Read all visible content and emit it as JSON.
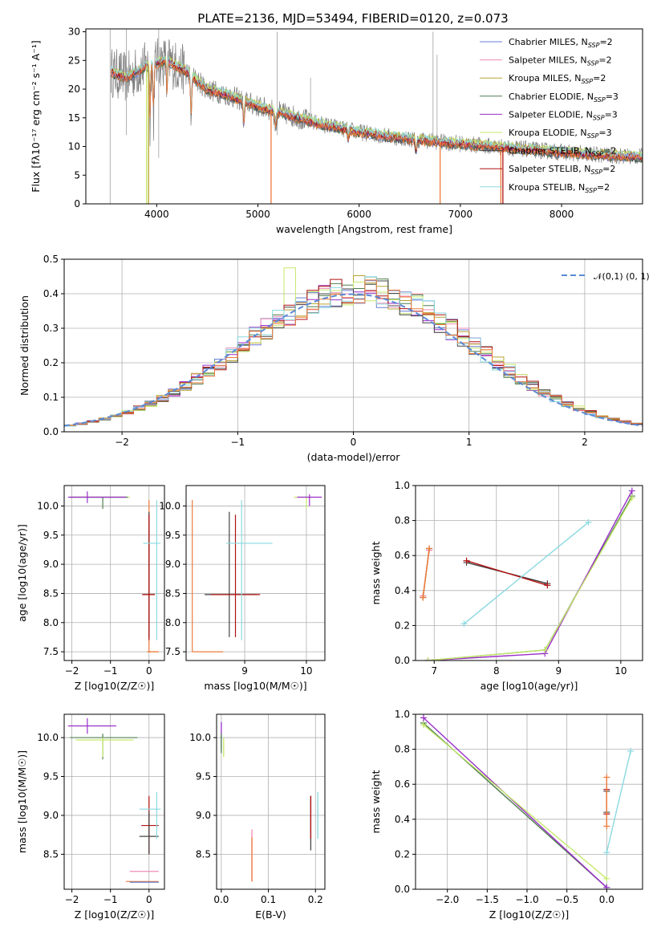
{
  "colors": {
    "gray": "#7f7f7f",
    "grid": "#b0b0b0",
    "chabrier_miles": "#6a7fd1",
    "salpeter_miles": "#f08cb5",
    "kroupa_miles": "#b8a430",
    "chabrier_elodie": "#4f7f4f",
    "salpeter_elodie": "#9a2fc9",
    "kroupa_elodie": "#c5e86a",
    "chabrier_stelib": "#444444",
    "salpeter_stelib": "#b01212",
    "kroupa_stelib": "#8ad9e0",
    "orange": "#ee7b3a",
    "normal": "#5b8ad6"
  },
  "series_keys": [
    "chabrier_miles",
    "salpeter_miles",
    "kroupa_miles",
    "chabrier_elodie",
    "salpeter_elodie",
    "kroupa_elodie",
    "chabrier_stelib",
    "salpeter_stelib",
    "kroupa_stelib"
  ],
  "chart_data": [
    {
      "type": "line",
      "title": "PLATE=2136, MJD=53494, FIBERID=0120, z=0.073",
      "xlabel": "wavelength [Angstrom, rest frame]",
      "ylabel": "Flux [fλ10⁻¹⁷ erg cm⁻² s⁻¹ A⁻¹]",
      "xlim": [
        3300,
        8800
      ],
      "ylim": [
        0,
        30.5
      ],
      "xticks": [
        4000,
        5000,
        6000,
        7000,
        8000
      ],
      "yticks": [
        0,
        5,
        10,
        15,
        20,
        25,
        30
      ],
      "legend_position": "upper-right",
      "legend": [
        "Chabrier MILES, N_SSP=2",
        "Salpeter MILES, N_SSP=2",
        "Kroupa MILES, N_SSP=2",
        "Chabrier ELODIE, N_SSP=3",
        "Salpeter ELODIE, N_SSP=3",
        "Kroupa ELODIE, N_SSP=3",
        "Chabrier STELIB, N_SSP=2",
        "Salpeter STELIB, N_SSP=2",
        "Kroupa STELIB, N_SSP=2"
      ],
      "model_continuum": {
        "x": [
          3550,
          3700,
          3900,
          4100,
          4300,
          4500,
          4700,
          5000,
          5300,
          5600,
          6000,
          6400,
          6800,
          7200,
          7600,
          8000,
          8400,
          8800
        ],
        "y": [
          23,
          22,
          24,
          25,
          23,
          20,
          19,
          17,
          15.5,
          14,
          12.5,
          11.5,
          10.8,
          10.2,
          9.6,
          9.0,
          8.5,
          8.2
        ]
      }
    },
    {
      "type": "bar",
      "xlabel": "(data-model)/error",
      "ylabel": "Normed distribution",
      "xlim": [
        -2.5,
        2.5
      ],
      "ylim": [
        0,
        0.5
      ],
      "xticks": [
        -2,
        -1,
        0,
        1,
        2
      ],
      "yticks": [
        0.0,
        0.1,
        0.2,
        0.3,
        0.4,
        0.5
      ],
      "legend": [
        "𝒩(0,1)"
      ],
      "legend_position": "upper-right",
      "bin_width": 0.1
    },
    {
      "type": "scatter",
      "xlabel": "Z [log10(Z/Z☉)]",
      "ylabel": "age  [log10(age/yr)]",
      "xlim": [
        -2.2,
        0.4
      ],
      "ylim": [
        7.35,
        10.35
      ],
      "xticks": [
        -2,
        -1,
        0
      ],
      "yticks": [
        7.5,
        8.0,
        8.5,
        9.0,
        9.5,
        10.0
      ]
    },
    {
      "type": "scatter",
      "xlabel": "mass [log10(M/M☉)]",
      "ylabel": "",
      "xlim": [
        8.05,
        10.3
      ],
      "ylim": [
        7.35,
        10.35
      ],
      "xticks": [
        9,
        10
      ],
      "yticks": [
        7.5,
        8.0,
        8.5,
        9.0,
        9.5,
        10.0
      ]
    },
    {
      "type": "line",
      "xlabel": "age  [log10(age/yr)]",
      "ylabel": "mass weight",
      "xlim": [
        6.7,
        10.35
      ],
      "ylim": [
        0,
        1
      ],
      "xticks": [
        7,
        8,
        9,
        10
      ],
      "yticks": [
        0.0,
        0.2,
        0.4,
        0.6,
        0.8,
        1.0
      ],
      "series": [
        {
          "name": "Chabrier MILES",
          "key": "chabrier_miles",
          "x": [
            6.82,
            6.92
          ],
          "y": [
            0.36,
            0.64
          ]
        },
        {
          "name": "Salpeter MILES",
          "key": "salpeter_miles",
          "x": [
            6.82,
            6.92
          ],
          "y": [
            0.37,
            0.63
          ]
        },
        {
          "name": "Kroupa MILES",
          "key": "kroupa_miles",
          "x": [
            6.82,
            6.92
          ],
          "y": [
            0.36,
            0.64
          ]
        },
        {
          "name": "Chabrier ELODIE",
          "key": "chabrier_elodie",
          "x": [
            6.9,
            8.78,
            10.18
          ],
          "y": [
            0.0,
            0.06,
            0.94
          ]
        },
        {
          "name": "Salpeter ELODIE",
          "key": "salpeter_elodie",
          "x": [
            6.9,
            8.78,
            10.18
          ],
          "y": [
            0.0,
            0.04,
            0.97
          ]
        },
        {
          "name": "Kroupa ELODIE",
          "key": "kroupa_elodie",
          "x": [
            6.9,
            8.78,
            10.18
          ],
          "y": [
            0.0,
            0.06,
            0.93
          ]
        },
        {
          "name": "Chabrier STELIB",
          "key": "chabrier_stelib",
          "x": [
            7.52,
            8.82
          ],
          "y": [
            0.56,
            0.44
          ]
        },
        {
          "name": "Salpeter STELIB",
          "key": "salpeter_stelib",
          "x": [
            7.52,
            8.82
          ],
          "y": [
            0.57,
            0.43
          ]
        },
        {
          "name": "Kroupa STELIB",
          "key": "kroupa_stelib",
          "x": [
            7.48,
            9.48
          ],
          "y": [
            0.21,
            0.79
          ]
        },
        {
          "name": "orange",
          "key": "orange",
          "x": [
            6.82,
            6.92
          ],
          "y": [
            0.36,
            0.64
          ]
        }
      ]
    },
    {
      "type": "scatter",
      "xlabel": "Z [log10(Z/Z☉)]",
      "ylabel": "mass [log10(M/M☉)]",
      "xlim": [
        -2.2,
        0.4
      ],
      "ylim": [
        8.05,
        10.3
      ],
      "xticks": [
        -2,
        -1,
        0
      ],
      "yticks": [
        8.5,
        9.0,
        9.5,
        10.0
      ]
    },
    {
      "type": "scatter",
      "xlabel": "E(B-V)",
      "ylabel": "",
      "xlim": [
        -0.01,
        0.22
      ],
      "ylim": [
        8.05,
        10.3
      ],
      "xticks": [
        0.0,
        0.1,
        0.2
      ],
      "yticks": [
        8.5,
        9.0,
        9.5,
        10.0
      ]
    },
    {
      "type": "line",
      "xlabel": "Z [log10(Z/Z☉)]",
      "ylabel": "mass weight",
      "xlim": [
        -2.4,
        0.45
      ],
      "ylim": [
        0,
        1
      ],
      "xticks": [
        -2.0,
        -1.5,
        -1.0,
        -0.5,
        0.0
      ],
      "yticks": [
        0.0,
        0.2,
        0.4,
        0.6,
        0.8,
        1.0
      ],
      "series": [
        {
          "name": "Chabrier ELODIE",
          "key": "chabrier_elodie",
          "x": [
            -2.3,
            0.0
          ],
          "y": [
            0.95,
            0.01
          ]
        },
        {
          "name": "Salpeter ELODIE",
          "key": "salpeter_elodie",
          "x": [
            -2.3,
            0.0
          ],
          "y": [
            0.98,
            0.01
          ]
        },
        {
          "name": "Kroupa ELODIE",
          "key": "kroupa_elodie",
          "x": [
            -2.3,
            0.0
          ],
          "y": [
            0.94,
            0.06
          ]
        },
        {
          "name": "Kroupa STELIB",
          "key": "kroupa_stelib",
          "x": [
            0.0,
            0.3
          ],
          "y": [
            0.21,
            0.79
          ]
        },
        {
          "name": "Chabrier STELIB",
          "key": "chabrier_stelib",
          "x": [
            0.0,
            0.0
          ],
          "y": [
            0.44,
            0.56
          ]
        },
        {
          "name": "Salpeter STELIB",
          "key": "salpeter_stelib",
          "x": [
            0.0,
            0.0
          ],
          "y": [
            0.43,
            0.57
          ]
        },
        {
          "name": "orange",
          "key": "orange",
          "x": [
            0.0,
            0.0
          ],
          "y": [
            0.36,
            0.64
          ]
        }
      ]
    }
  ]
}
